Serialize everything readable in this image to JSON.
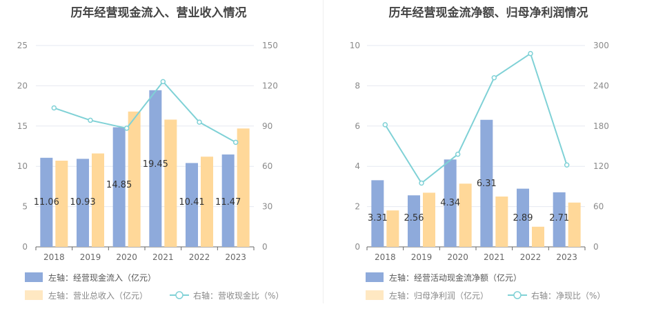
{
  "chart_data": [
    {
      "type": "bar",
      "title": "历年经营现金流入、营业收入情况",
      "categories": [
        "2018",
        "2019",
        "2020",
        "2021",
        "2022",
        "2023"
      ],
      "ylim_left": [
        0,
        25
      ],
      "yticks_left": [
        "0",
        "5",
        "10",
        "15",
        "20",
        "25"
      ],
      "ylim_right": [
        0,
        150
      ],
      "yticks_right": [
        "0",
        "30",
        "60",
        "90",
        "120",
        "150"
      ],
      "series": [
        {
          "name": "左轴：经营现金流入（亿元）",
          "kind": "bar",
          "axis": "left",
          "color": "#8eaadb",
          "values": [
            11.06,
            10.93,
            14.85,
            19.45,
            10.41,
            11.47
          ],
          "labels": [
            "11.06",
            "10.93",
            "14.85",
            "19.45",
            "10.41",
            "11.47"
          ]
        },
        {
          "name": "左轴：营业总收入（亿元）",
          "kind": "bar",
          "axis": "left",
          "color": "#ffd899",
          "values": [
            10.7,
            11.6,
            16.8,
            15.8,
            11.2,
            14.7
          ]
        },
        {
          "name": "右轴：营收现金比（%）",
          "kind": "line",
          "axis": "right",
          "color": "#7fd1d6",
          "values": [
            103.5,
            94.3,
            88.4,
            123.1,
            92.9,
            77.9
          ]
        }
      ],
      "grid": true,
      "legend_position": "bottom-left"
    },
    {
      "type": "bar",
      "title": "历年经营现金流净额、归母净利润情况",
      "categories": [
        "2018",
        "2019",
        "2020",
        "2021",
        "2022",
        "2023"
      ],
      "ylim_left": [
        0,
        10
      ],
      "yticks_left": [
        "0",
        "2",
        "4",
        "6",
        "8",
        "10"
      ],
      "ylim_right": [
        0,
        300
      ],
      "yticks_right": [
        "0",
        "60",
        "120",
        "180",
        "240",
        "300"
      ],
      "series": [
        {
          "name": "左轴：经营活动现金流净额（亿元）",
          "kind": "bar",
          "axis": "left",
          "color": "#8eaadb",
          "values": [
            3.31,
            2.56,
            4.34,
            6.31,
            2.89,
            2.71
          ],
          "labels": [
            "3.31",
            "2.56",
            "4.34",
            "6.31",
            "2.89",
            "2.71"
          ]
        },
        {
          "name": "左轴：归母净利润（亿元）",
          "kind": "bar",
          "axis": "left",
          "color": "#ffd899",
          "values": [
            1.81,
            2.69,
            3.14,
            2.5,
            1.0,
            2.2
          ]
        },
        {
          "name": "右轴：净现比（%）",
          "kind": "line",
          "axis": "right",
          "color": "#7fd1d6",
          "values": [
            182,
            95,
            138,
            252,
            288,
            122
          ]
        }
      ],
      "grid": true,
      "legend_position": "bottom-left"
    }
  ]
}
